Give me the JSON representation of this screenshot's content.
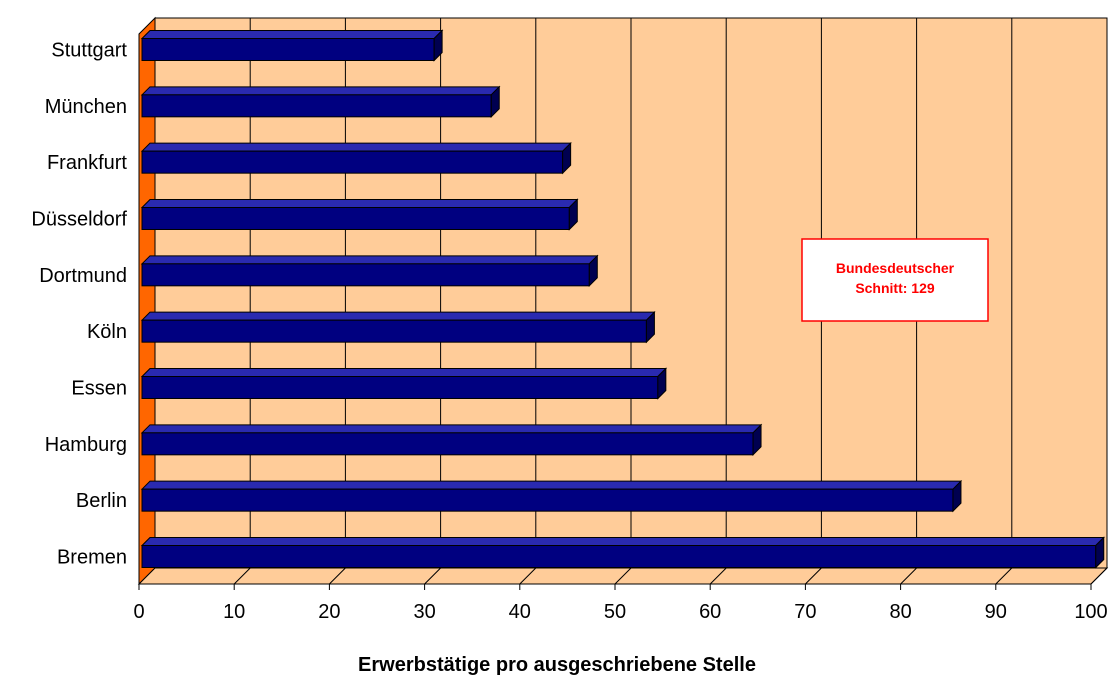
{
  "chart_data": {
    "type": "bar",
    "orientation": "horizontal",
    "three_d": true,
    "categories": [
      "Stuttgart",
      "München",
      "Frankfurt",
      "Düsseldorf",
      "Dortmund",
      "Köln",
      "Essen",
      "Hamburg",
      "Berlin",
      "Bremen"
    ],
    "values": [
      31,
      37,
      44.5,
      45.2,
      47.3,
      53.3,
      54.5,
      64.5,
      85.5,
      100.5
    ],
    "xlabel": "Erwerbstätige pro ausgeschriebene Stelle",
    "ylabel": "",
    "xlim": [
      0,
      100
    ],
    "xticks": [
      "0",
      "10",
      "20",
      "30",
      "40",
      "50",
      "60",
      "70",
      "80",
      "90",
      "100"
    ],
    "grid": true,
    "annotation": [
      "Bundesdeutscher",
      "Schnitt: 129"
    ],
    "colors": {
      "bar": "#000080",
      "bar_top": "#2a2ab0",
      "bar_side": "#000050",
      "plot_background": "#ffcc99",
      "floor": "#ffcc99",
      "side_wall": "#ff6600",
      "annotation_text": "#ff0000",
      "annotation_border": "#ff0000"
    }
  }
}
